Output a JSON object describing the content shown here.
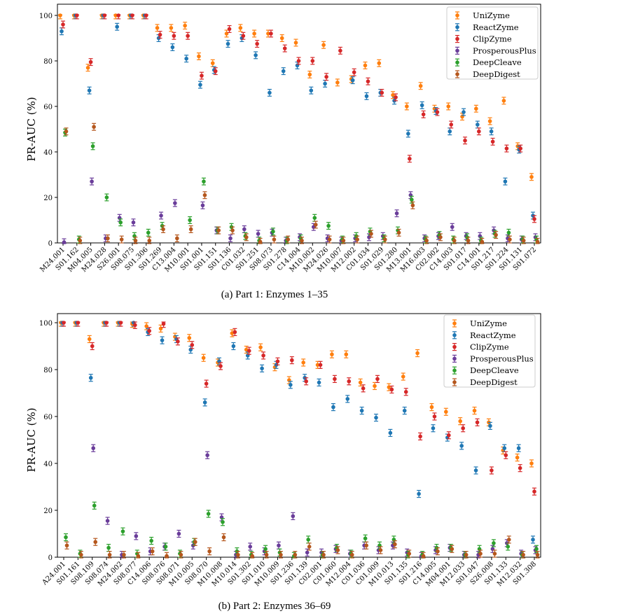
{
  "chart_data": [
    {
      "type": "scatter",
      "title": "",
      "caption": "(a) Part 1: Enzymes 1–35",
      "xlabel": "",
      "ylabel": "PR-AUC (%)",
      "ylim": [
        0,
        100
      ],
      "yticks": [
        0,
        20,
        40,
        60,
        80,
        100
      ],
      "grid": false,
      "legend_position": "top-right",
      "categories": [
        "M24.001",
        "S01.162",
        "M04.005",
        "M24.028",
        "S26.001",
        "S08.075",
        "S01.306",
        "S01.269",
        "C13.004",
        "M10.001",
        "S01.001",
        "S01.151",
        "S01.136",
        "C01.032",
        "S01.251",
        "S08.073",
        "S01.278",
        "C14.004",
        "M10.002",
        "M24.026",
        "M10.007",
        "M12.002",
        "C01.034",
        "S01.029",
        "S01.280",
        "M13.001",
        "M16.003",
        "C02.002",
        "C14.003",
        "S01.017",
        "C14.001",
        "S01.217",
        "S01.224",
        "S01.131",
        "S01.072"
      ],
      "series": [
        {
          "name": "UniZyme",
          "color": "#ff7f0e",
          "values": [
            100,
            100,
            77,
            100,
            100,
            100,
            100,
            94.5,
            94.5,
            95.5,
            82,
            79,
            92,
            94.5,
            92,
            92,
            90,
            88,
            74,
            87,
            70.5,
            72,
            78,
            79,
            65,
            60,
            69,
            59,
            60,
            55.5,
            59,
            53.5,
            62.5,
            42.5,
            29
          ]
        },
        {
          "name": "ReactZyme",
          "color": "#1f77b4",
          "values": [
            93,
            100,
            67,
            100,
            95,
            100,
            100,
            90,
            86,
            81,
            69.5,
            76,
            87.5,
            90,
            82.5,
            66,
            75.5,
            78,
            67,
            70,
            null,
            71.5,
            64.5,
            66,
            62.5,
            48,
            60.5,
            58,
            49,
            57.5,
            52,
            49,
            27,
            41,
            12
          ]
        },
        {
          "name": "ClipZyme",
          "color": "#d62728",
          "values": [
            96,
            100,
            79.5,
            100,
            100,
            100,
            100,
            91.5,
            91,
            91,
            73.5,
            75.5,
            94,
            91,
            87.5,
            92,
            85.5,
            80,
            80,
            73,
            84.5,
            75,
            71,
            66,
            64,
            37,
            56.5,
            57.5,
            52,
            45,
            49,
            44.5,
            41.5,
            41.5,
            10.5
          ]
        },
        {
          "name": "ProsperousPlus",
          "color": "#6a3d9a",
          "values": [
            0.3,
            null,
            27,
            2,
            11,
            9,
            null,
            12,
            17.5,
            null,
            16.5,
            5.5,
            2,
            6,
            4,
            4.5,
            1,
            2.5,
            7,
            2,
            1,
            2,
            2.5,
            3,
            13,
            21,
            2,
            3,
            7,
            3,
            3,
            5.5,
            2,
            1.5,
            2.5
          ]
        },
        {
          "name": "DeepCleave",
          "color": "#2ca02c",
          "values": [
            48.5,
            1.5,
            42.5,
            20,
            9,
            3,
            4.5,
            7.5,
            null,
            10,
            27,
            5.5,
            7,
            3,
            1,
            5,
            1,
            2,
            11,
            7.5,
            1.5,
            3,
            5,
            2,
            5.5,
            19,
            1.5,
            3.5,
            1.5,
            2.5,
            1,
            4,
            4.5,
            1.5,
            1.5
          ]
        },
        {
          "name": "DeepDigest",
          "color": "#b5571d",
          "values": [
            49,
            1,
            51,
            2,
            1.5,
            1,
            1,
            6,
            2,
            6,
            21,
            5.5,
            5.5,
            2.5,
            0.5,
            1.5,
            1.5,
            1,
            8,
            1.5,
            1,
            1.5,
            4,
            1.5,
            4.5,
            16.5,
            1,
            2.5,
            1,
            1,
            0.5,
            3.5,
            1.5,
            1,
            0.5
          ]
        }
      ]
    },
    {
      "type": "scatter",
      "title": "",
      "caption": "(b) Part 2: Enzymes 36–69",
      "xlabel": "",
      "ylabel": "PR-AUC (%)",
      "ylim": [
        0,
        100
      ],
      "yticks": [
        0,
        20,
        40,
        60,
        80,
        100
      ],
      "grid": false,
      "legend_position": "top-right",
      "categories": [
        "A24.001",
        "S01.161",
        "S08.109",
        "S08.074",
        "M24.002",
        "S08.077",
        "C14.006",
        "S08.076",
        "S08.071",
        "M10.005",
        "S08.070",
        "M10.008",
        "M10.014",
        "S01.302",
        "S01.010",
        "M10.009",
        "S01.236",
        "S01.139",
        "C02.001",
        "C01.060",
        "M12.004",
        "C01.036",
        "C01.009",
        "M10.013",
        "S01.135",
        "S01.216",
        "C14.005",
        "M04.001",
        "M12.033",
        "S01.047",
        "S26.008",
        "S01.133",
        "M12.032",
        "S01.308"
      ],
      "series": [
        {
          "name": "UniZyme",
          "color": "#ff7f0e",
          "values": [
            100,
            100,
            93,
            100,
            100,
            99.5,
            98.5,
            97.5,
            94,
            93.5,
            85,
            83,
            95.5,
            88.5,
            89.5,
            81,
            75.5,
            83,
            82,
            86.5,
            86.5,
            74.5,
            73,
            72.5,
            77,
            87,
            64,
            62,
            58,
            62.5,
            57.5,
            45.5,
            42.5,
            40
          ]
        },
        {
          "name": "ReactZyme",
          "color": "#1f77b4",
          "values": [
            100,
            100,
            76.5,
            100,
            100,
            100,
            96,
            92.5,
            93,
            88.5,
            66,
            83.5,
            90,
            86,
            80.5,
            82,
            73.5,
            76.5,
            74.5,
            64,
            67.5,
            62.5,
            59.5,
            53,
            62.5,
            27,
            55,
            51,
            47.5,
            37,
            56,
            46.5,
            46.5,
            7.5
          ]
        },
        {
          "name": "ClipZyme",
          "color": "#d62728",
          "values": [
            100,
            100,
            90,
            100,
            100,
            99,
            96.5,
            99.5,
            92,
            90.5,
            74,
            81.5,
            96,
            88,
            86,
            83.5,
            84,
            75,
            82,
            76,
            75,
            72,
            76,
            71.5,
            70.5,
            51.5,
            60,
            52,
            55,
            57.5,
            37,
            43.5,
            38,
            28
          ]
        },
        {
          "name": "ProsperousPlus",
          "color": "#6a3d9a",
          "values": [
            null,
            null,
            46.5,
            15.5,
            1,
            9,
            2.5,
            4.5,
            10,
            5,
            43.5,
            17,
            1,
            4.5,
            2.5,
            5,
            17.5,
            2,
            2,
            3.5,
            1.5,
            5,
            3,
            5,
            2,
            0.5,
            3,
            4,
            1,
            1,
            3.5,
            6,
            1.5,
            3
          ]
        },
        {
          "name": "DeepCleave",
          "color": "#2ca02c",
          "values": [
            8.5,
            1.5,
            22,
            4,
            11,
            1.5,
            7,
            4.5,
            1.5,
            6.5,
            18.5,
            15,
            2.5,
            1,
            3.5,
            2,
            0.5,
            7.5,
            1,
            4,
            1.5,
            8,
            5,
            7.5,
            1,
            1,
            4,
            4,
            1,
            3.5,
            6,
            4.5,
            1,
            3.5
          ]
        },
        {
          "name": "DeepDigest",
          "color": "#b5571d",
          "values": [
            5,
            1,
            6.5,
            1,
            1,
            0.5,
            2.5,
            0.5,
            1,
            6.5,
            2.5,
            8.5,
            1,
            0.5,
            1,
            1,
            1,
            4.5,
            1,
            3,
            1,
            5,
            3,
            5.5,
            1.5,
            0.5,
            2.5,
            3.5,
            1,
            1.5,
            1.5,
            7.5,
            1,
            1
          ]
        }
      ]
    }
  ]
}
